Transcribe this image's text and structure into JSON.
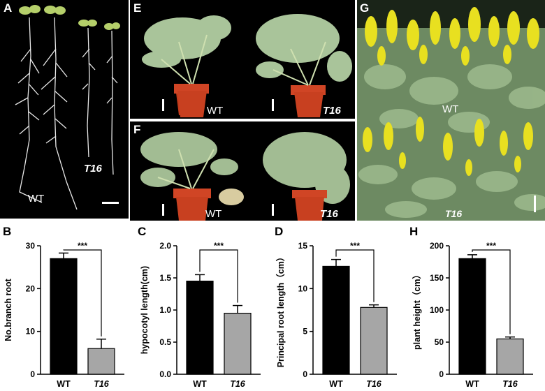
{
  "panels": {
    "A": {
      "label": "A",
      "wt": "WT",
      "t16": "T16"
    },
    "E": {
      "label": "E",
      "wt": "WT",
      "t16": "T16"
    },
    "F": {
      "label": "F",
      "wt": "WT",
      "t16": "T16"
    },
    "G": {
      "label": "G",
      "wt": "WT",
      "t16": "T16"
    },
    "B": {
      "label": "B"
    },
    "C": {
      "label": "C"
    },
    "D": {
      "label": "D"
    },
    "H": {
      "label": "H"
    }
  },
  "colors": {
    "wt_bar": "#000000",
    "t16_bar": "#a6a6a6",
    "flower": "#e8e020",
    "leaf": "#8fb07a"
  },
  "chart_data": [
    {
      "id": "B",
      "type": "bar",
      "categories": [
        "WT",
        "T16"
      ],
      "values": [
        27,
        6
      ],
      "errors": [
        1.3,
        2.2
      ],
      "ylabel": "No.branch root",
      "ylim": [
        0,
        30
      ],
      "yticks": [
        0,
        10,
        20,
        30
      ],
      "significance": "***"
    },
    {
      "id": "C",
      "type": "bar",
      "categories": [
        "WT",
        "T16"
      ],
      "values": [
        1.45,
        0.95
      ],
      "errors": [
        0.1,
        0.12
      ],
      "ylabel": "hypocotyl length(cm)",
      "ylim": [
        0,
        2.0
      ],
      "yticks": [
        "0.0",
        "0.5",
        "1.0",
        "1.5",
        "2.0"
      ],
      "significance": "***"
    },
    {
      "id": "D",
      "type": "bar",
      "categories": [
        "WT",
        "T16"
      ],
      "values": [
        12.6,
        7.8
      ],
      "errors": [
        0.8,
        0.3
      ],
      "ylabel": "Principal root length（cm）",
      "ylim": [
        0,
        15
      ],
      "yticks": [
        0,
        5,
        10,
        15
      ],
      "significance": "***"
    },
    {
      "id": "H",
      "type": "bar",
      "categories": [
        "WT",
        "T16"
      ],
      "values": [
        180,
        55
      ],
      "errors": [
        6,
        3
      ],
      "ylabel": "plant height（cm）",
      "ylim": [
        0,
        200
      ],
      "yticks": [
        0,
        50,
        100,
        150,
        200
      ],
      "significance": "***"
    }
  ]
}
